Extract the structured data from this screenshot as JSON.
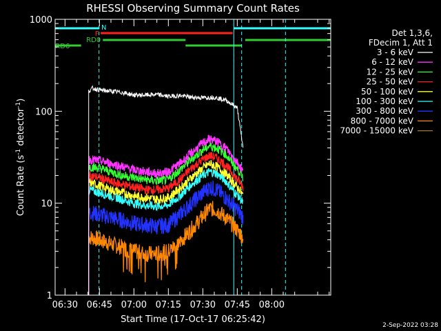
{
  "chart_data": {
    "type": "line",
    "title": "RHESSI Observing Summary Count Rates",
    "xlabel": "Start Time (17-Oct-17 06:25:42)",
    "ylabel_main": "Count Rate (s",
    "ylabel_sup1": "-1",
    "ylabel_mid": " detector",
    "ylabel_sup2": "-1",
    "ylabel_end": ")",
    "yscale": "log",
    "ylim": [
      1,
      1000
    ],
    "xlim_minutes": [
      25.7,
      145.7
    ],
    "yticks": [
      {
        "value": 1,
        "label": "1"
      },
      {
        "value": 10,
        "label": "10"
      },
      {
        "value": 100,
        "label": "100"
      },
      {
        "value": 1000,
        "label": "1000"
      }
    ],
    "xticks": [
      {
        "value": 30,
        "label": "06:30"
      },
      {
        "value": 45,
        "label": "06:45"
      },
      {
        "value": 60,
        "label": "07:00"
      },
      {
        "value": 75,
        "label": "07:15"
      },
      {
        "value": 90,
        "label": "07:30"
      },
      {
        "value": 105,
        "label": "07:45"
      },
      {
        "value": 120,
        "label": "08:00"
      }
    ],
    "legend_header": [
      "Det 1,3,6,",
      "FDecim 1, Att 1"
    ],
    "legend_position": "right",
    "series": [
      {
        "name": "3 - 6 keV",
        "color": "#ffffff",
        "x": [
          40.3,
          42,
          45,
          50,
          55,
          60,
          65,
          70,
          75,
          80,
          85,
          90,
          95,
          100,
          103,
          105,
          107.5
        ],
        "values": [
          165,
          178,
          170,
          165,
          160,
          150,
          150,
          152,
          145,
          148,
          142,
          140,
          142,
          132,
          118,
          108,
          40
        ]
      },
      {
        "name": "6 - 12 keV",
        "color": "#ff33ff",
        "x": [
          40.3,
          45,
          50,
          55,
          60,
          65,
          70,
          75,
          80,
          85,
          90,
          93,
          96,
          100,
          103,
          106,
          107.5
        ],
        "values": [
          30,
          29,
          27,
          25,
          23,
          22,
          21,
          22,
          27,
          35,
          45,
          50,
          47,
          40,
          32,
          26,
          22
        ]
      },
      {
        "name": "12 - 25 keV",
        "color": "#33ff33",
        "x": [
          40.3,
          45,
          50,
          55,
          60,
          65,
          70,
          75,
          80,
          85,
          90,
          93,
          96,
          100,
          103,
          106,
          107.5
        ],
        "values": [
          25,
          24,
          22,
          20,
          19,
          18,
          17.5,
          18,
          23,
          30,
          38,
          42,
          40,
          34,
          27,
          22,
          19
        ]
      },
      {
        "name": "25 - 50 keV",
        "color": "#ff2020",
        "x": [
          40.3,
          45,
          50,
          55,
          60,
          65,
          70,
          75,
          80,
          85,
          90,
          93,
          96,
          100,
          103,
          106,
          107.5
        ],
        "values": [
          20,
          19,
          17,
          16,
          15,
          14,
          14,
          14.5,
          18,
          24,
          30,
          33,
          31,
          26,
          21,
          17,
          15
        ]
      },
      {
        "name": "50 - 100 keV",
        "color": "#ffff33",
        "x": [
          40.3,
          45,
          50,
          55,
          60,
          65,
          70,
          75,
          80,
          85,
          90,
          93,
          96,
          100,
          103,
          106,
          107.5
        ],
        "values": [
          17,
          15.5,
          14,
          13,
          12,
          11.5,
          11,
          11.5,
          14.5,
          19,
          24,
          27,
          25,
          21,
          17,
          14,
          12
        ]
      },
      {
        "name": "100 - 300 keV",
        "color": "#33ffff",
        "x": [
          40.3,
          45,
          50,
          55,
          60,
          65,
          70,
          75,
          80,
          85,
          90,
          93,
          96,
          100,
          103,
          106,
          107.5
        ],
        "values": [
          14,
          13,
          12,
          11,
          10,
          9.5,
          9.2,
          9.6,
          12,
          16,
          20,
          22,
          21,
          17.5,
          14,
          11.5,
          10
        ]
      },
      {
        "name": "300 - 800 keV",
        "color": "#2233ff",
        "x": [
          40.3,
          45,
          50,
          55,
          60,
          65,
          70,
          75,
          80,
          85,
          90,
          93,
          96,
          100,
          103,
          106,
          107.5
        ],
        "values": [
          8,
          7.5,
          7,
          6.5,
          6,
          5.8,
          5.6,
          5.8,
          7.5,
          10,
          13,
          15,
          14,
          11.5,
          9.5,
          8,
          7
        ]
      },
      {
        "name": "800 - 7000 keV",
        "color": "#ff8800",
        "x": [
          40.3,
          45,
          50,
          55,
          60,
          65,
          70,
          75,
          80,
          85,
          90,
          93,
          96,
          100,
          103,
          106,
          107.5
        ],
        "values": [
          4.3,
          4.0,
          3.6,
          3.3,
          3.0,
          2.8,
          2.8,
          3.0,
          3.8,
          5.2,
          7.2,
          8.8,
          8.4,
          7.0,
          5.8,
          4.8,
          4.2
        ]
      },
      {
        "name": "7000 - 15000 keV",
        "color": "#aa7722",
        "x": [],
        "values": []
      }
    ],
    "flags": [
      {
        "name": "N",
        "color": "#33ffff",
        "segments": [
          [
            25.7,
            45.0
          ],
          [
            103.5,
            145.7
          ]
        ]
      },
      {
        "name": "F",
        "color": "#ff2020",
        "segments": [
          [
            45.5,
            103.0
          ]
        ]
      },
      {
        "name": "RD0",
        "color": "#33cc33",
        "segments": [
          [
            46.5,
            82.5
          ],
          [
            108.5,
            145.7
          ]
        ]
      },
      {
        "name": "RD6",
        "color": "#33cc33",
        "segments": [
          [
            25.7,
            37.0
          ],
          [
            82.5,
            107.0
          ]
        ]
      }
    ],
    "vlines": [
      {
        "x": 25.7,
        "style": "solid"
      },
      {
        "x": 103.5,
        "style": "solid"
      },
      {
        "x": 44.8,
        "style": "dashed"
      },
      {
        "x": 106.9,
        "style": "dashed"
      },
      {
        "x": 126.0,
        "style": "dashed"
      }
    ],
    "vline_color": "#33ffff",
    "timestamp": "2-Sep-2022 03:28"
  }
}
